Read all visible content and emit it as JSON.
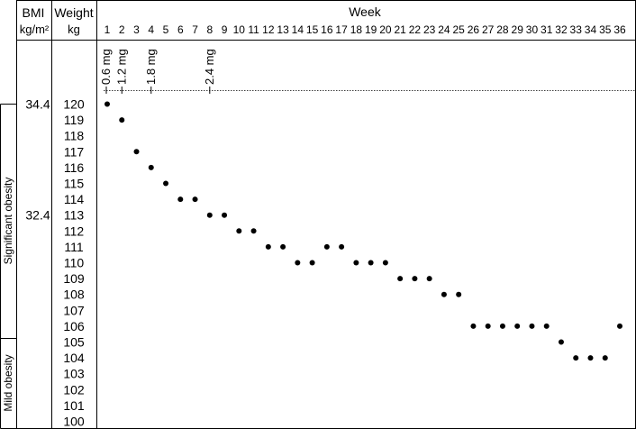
{
  "chart_data": {
    "type": "scatter",
    "title": "",
    "header": {
      "bmi_label": "BMI",
      "bmi_unit": "kg/m²",
      "weight_label": "Weight",
      "weight_unit": "kg",
      "week_label": "Week"
    },
    "x_ticks": [
      "1",
      "2",
      "3",
      "4",
      "5",
      "6",
      "7",
      "8",
      "9",
      "10",
      "11",
      "12",
      "13",
      "14",
      "15",
      "16",
      "17",
      "18",
      "19",
      "20",
      "21",
      "22",
      "23",
      "24",
      "25",
      "26",
      "27",
      "28",
      "29",
      "30",
      "31",
      "32",
      "33",
      "34",
      "35",
      "36"
    ],
    "y_ticks": [
      "120",
      "119",
      "118",
      "117",
      "116",
      "115",
      "114",
      "113",
      "112",
      "111",
      "110",
      "109",
      "108",
      "107",
      "106",
      "105",
      "104",
      "103",
      "102",
      "101",
      "100"
    ],
    "ylim": [
      100,
      120
    ],
    "xlim": [
      1,
      36
    ],
    "bmi_ticks": [
      {
        "label": "34.4",
        "weight": 120
      },
      {
        "label": "32.4",
        "weight": 113
      }
    ],
    "categories_bands": [
      {
        "label": "Significant obesity",
        "from": 105.5,
        "to": 120
      },
      {
        "label": "Mild obesity",
        "from": 100,
        "to": 105.5
      }
    ],
    "dose_steps": [
      {
        "label": "0.6 mg",
        "week": 1
      },
      {
        "label": "1.2 mg",
        "week": 2
      },
      {
        "label": "1.8 mg",
        "week": 4
      },
      {
        "label": "2.4 mg",
        "week": 8
      }
    ],
    "series": [
      {
        "x": [
          1,
          2,
          3,
          4,
          5,
          6,
          7,
          8,
          9,
          10,
          11,
          12,
          13,
          14,
          15,
          16,
          17,
          18,
          19,
          20,
          21,
          22,
          23,
          24,
          25,
          26,
          27,
          28,
          29,
          30,
          31,
          32,
          33,
          34,
          35,
          36
        ],
        "y": [
          120,
          119,
          117,
          116,
          115,
          114,
          114,
          113,
          113,
          112,
          112,
          111,
          111,
          110,
          110,
          111,
          111,
          110,
          110,
          110,
          109,
          109,
          109,
          108,
          108,
          106,
          106,
          106,
          106,
          106,
          106,
          105,
          104,
          104,
          104,
          106
        ]
      }
    ]
  }
}
